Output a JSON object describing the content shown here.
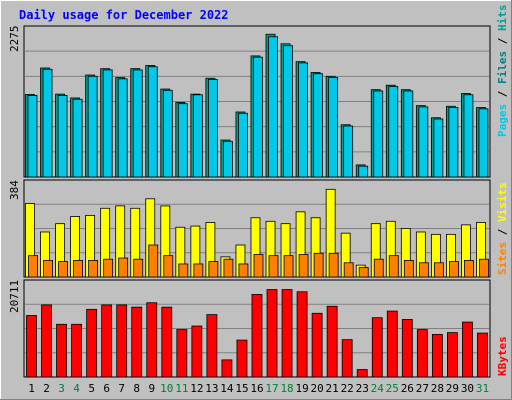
{
  "title": "Daily usage for December 2022",
  "colors": {
    "background": "#c0c0c0",
    "plot_bg": "#c0c0c0",
    "title": "#0000ff",
    "pages": "#00c8e8",
    "files": "#008080",
    "hits": "#00a090",
    "visits": "#ffff00",
    "sites": "#ff8000",
    "kbytes": "#ff0000",
    "weekend_label": "#008040",
    "weekday_label": "#000000"
  },
  "chart_data": [
    {
      "type": "bar",
      "name": "hits-files-pages",
      "ymax_label": "2275",
      "legend": [
        "Pages",
        "Files",
        "Hits"
      ],
      "ylim": [
        0,
        2275
      ],
      "categories": [
        "1",
        "2",
        "3",
        "4",
        "5",
        "6",
        "7",
        "8",
        "9",
        "10",
        "11",
        "12",
        "13",
        "14",
        "15",
        "16",
        "17",
        "18",
        "19",
        "20",
        "21",
        "22",
        "23",
        "24",
        "25",
        "26",
        "27",
        "28",
        "29",
        "30",
        "31"
      ],
      "series": [
        {
          "name": "Hits",
          "values": [
            1295,
            1710,
            1300,
            1240,
            1600,
            1700,
            1560,
            1700,
            1750,
            1380,
            1170,
            1300,
            1550,
            580,
            1020,
            1900,
            2240,
            2090,
            1810,
            1640,
            1580,
            820,
            190,
            1370,
            1440,
            1370,
            1120,
            930,
            1110,
            1310,
            1090
          ]
        },
        {
          "name": "Pages",
          "values": [
            1280,
            1690,
            1280,
            1220,
            1580,
            1680,
            1540,
            1680,
            1730,
            1360,
            1150,
            1290,
            1530,
            560,
            1000,
            1880,
            2200,
            2060,
            1790,
            1620,
            1560,
            800,
            170,
            1350,
            1420,
            1350,
            1100,
            910,
            1090,
            1290,
            1070
          ]
        }
      ]
    },
    {
      "type": "bar",
      "name": "visits-sites",
      "ymax_label": "384",
      "legend": [
        "Sites",
        "Visits"
      ],
      "ylim": [
        0,
        384
      ],
      "series": [
        {
          "name": "Visits",
          "values": [
            310,
            190,
            225,
            255,
            260,
            290,
            300,
            290,
            330,
            300,
            210,
            215,
            230,
            85,
            135,
            250,
            235,
            225,
            275,
            250,
            370,
            185,
            50,
            225,
            235,
            205,
            190,
            180,
            180,
            220,
            230
          ]
        },
        {
          "name": "Sites",
          "values": [
            90,
            70,
            65,
            70,
            70,
            75,
            80,
            75,
            135,
            90,
            55,
            55,
            65,
            75,
            55,
            95,
            90,
            90,
            95,
            100,
            100,
            60,
            40,
            75,
            90,
            70,
            60,
            60,
            65,
            70,
            75
          ]
        }
      ]
    },
    {
      "type": "bar",
      "name": "kbytes",
      "ymax_label": "20711",
      "legend": [
        "KBytes"
      ],
      "ylim": [
        0,
        20711
      ],
      "series": [
        {
          "name": "KBytes",
          "values": [
            14000,
            16400,
            12000,
            12000,
            15400,
            16400,
            16400,
            15900,
            16900,
            15900,
            10800,
            11600,
            14200,
            3900,
            8400,
            18800,
            19900,
            19900,
            19400,
            14500,
            16100,
            8500,
            1700,
            13500,
            15000,
            13100,
            10800,
            9700,
            10100,
            12500,
            10000
          ]
        }
      ]
    }
  ],
  "days": [
    "1",
    "2",
    "3",
    "4",
    "5",
    "6",
    "7",
    "8",
    "9",
    "10",
    "11",
    "12",
    "13",
    "14",
    "15",
    "16",
    "17",
    "18",
    "19",
    "20",
    "21",
    "22",
    "23",
    "24",
    "25",
    "26",
    "27",
    "28",
    "29",
    "30",
    "31"
  ],
  "weekend_days": [
    "3",
    "4",
    "10",
    "11",
    "17",
    "18",
    "24",
    "25",
    "31"
  ]
}
